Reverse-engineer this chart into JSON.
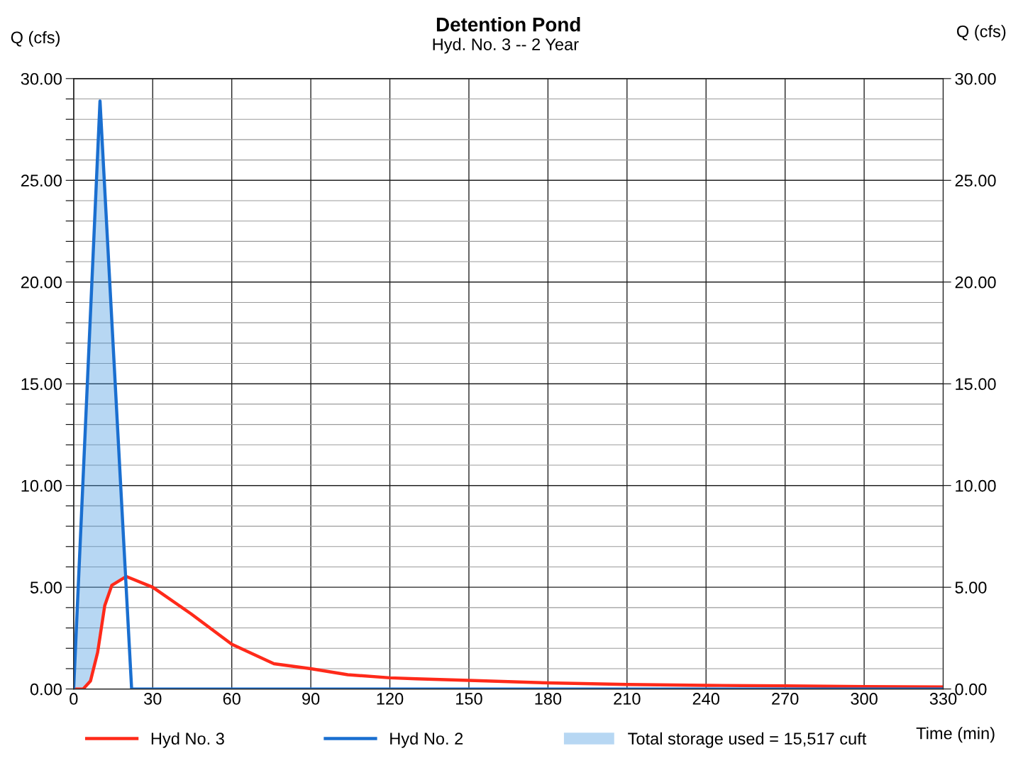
{
  "chart_data": {
    "type": "line",
    "title": "Detention Pond",
    "subtitle": "Hyd. No. 3 -- 2 Year",
    "xlabel": "Time (min)",
    "ylabel": "Q (cfs)",
    "y2label": "Q (cfs)",
    "xlim": [
      0,
      330
    ],
    "xticks": [
      0,
      30,
      60,
      90,
      120,
      150,
      180,
      210,
      240,
      270,
      300,
      330
    ],
    "ylim": [
      0,
      30
    ],
    "yticks": [
      {
        "value": 0,
        "label": "0.00"
      },
      {
        "value": 1,
        "label": null
      },
      {
        "value": 2,
        "label": null
      },
      {
        "value": 3,
        "label": null
      },
      {
        "value": 4,
        "label": null
      },
      {
        "value": 5,
        "label": "5.00"
      },
      {
        "value": 6,
        "label": null
      },
      {
        "value": 7,
        "label": null
      },
      {
        "value": 8,
        "label": null
      },
      {
        "value": 9,
        "label": null
      },
      {
        "value": 10,
        "label": "10.00"
      },
      {
        "value": 11,
        "label": null
      },
      {
        "value": 12,
        "label": null
      },
      {
        "value": 13,
        "label": null
      },
      {
        "value": 14,
        "label": null
      },
      {
        "value": 15,
        "label": "15.00"
      },
      {
        "value": 16,
        "label": null
      },
      {
        "value": 17,
        "label": null
      },
      {
        "value": 18,
        "label": null
      },
      {
        "value": 19,
        "label": null
      },
      {
        "value": 20,
        "label": "20.00"
      },
      {
        "value": 21,
        "label": null
      },
      {
        "value": 22,
        "label": null
      },
      {
        "value": 23,
        "label": null
      },
      {
        "value": 24,
        "label": null
      },
      {
        "value": 25,
        "label": "25.00"
      },
      {
        "value": 26,
        "label": null
      },
      {
        "value": 27,
        "label": null
      },
      {
        "value": 28,
        "label": null
      },
      {
        "value": 29,
        "label": null
      },
      {
        "value": 30,
        "label": "30.00"
      }
    ],
    "y2lim": [
      0,
      30
    ],
    "y2ticks": [
      {
        "value": 0,
        "label": "0.00"
      },
      {
        "value": 5,
        "label": "5.00"
      },
      {
        "value": 10,
        "label": "10.00"
      },
      {
        "value": 15,
        "label": "15.00"
      },
      {
        "value": 20,
        "label": "20.00"
      },
      {
        "value": 25,
        "label": "25.00"
      },
      {
        "value": 30,
        "label": "30.00"
      }
    ],
    "grid": true,
    "legend": "bottom",
    "marker": "none",
    "line_style": "solid",
    "series": [
      {
        "name": "Hyd No. 3",
        "color": "#ff2a1a",
        "x": [
          0,
          3.6,
          6.4,
          9.1,
          11.8,
          14.5,
          20,
          30,
          44.5,
          60,
          76,
          90,
          104,
          120,
          130,
          150,
          180,
          210,
          240,
          270,
          300,
          330
        ],
        "values": [
          0,
          0,
          0.4,
          1.8,
          4.1,
          5.1,
          5.53,
          5.0,
          3.7,
          2.2,
          1.24,
          1.0,
          0.7,
          0.55,
          0.5,
          0.42,
          0.3,
          0.22,
          0.18,
          0.15,
          0.12,
          0.1
        ]
      },
      {
        "name": "Hyd No. 2",
        "color": "#1a6fd0",
        "x": [
          0,
          10,
          22,
          330
        ],
        "values": [
          0,
          28.9,
          0,
          0
        ]
      },
      {
        "name": "Total storage used = 15,517 cuft",
        "type": "area",
        "color": "#4a9be0",
        "x": [
          0,
          3.6,
          6.4,
          9.1,
          10,
          11.8,
          14.5,
          19
        ],
        "values": [
          0,
          10.4,
          18.5,
          26.3,
          28.9,
          24.6,
          18.1,
          7.2
        ]
      }
    ]
  }
}
